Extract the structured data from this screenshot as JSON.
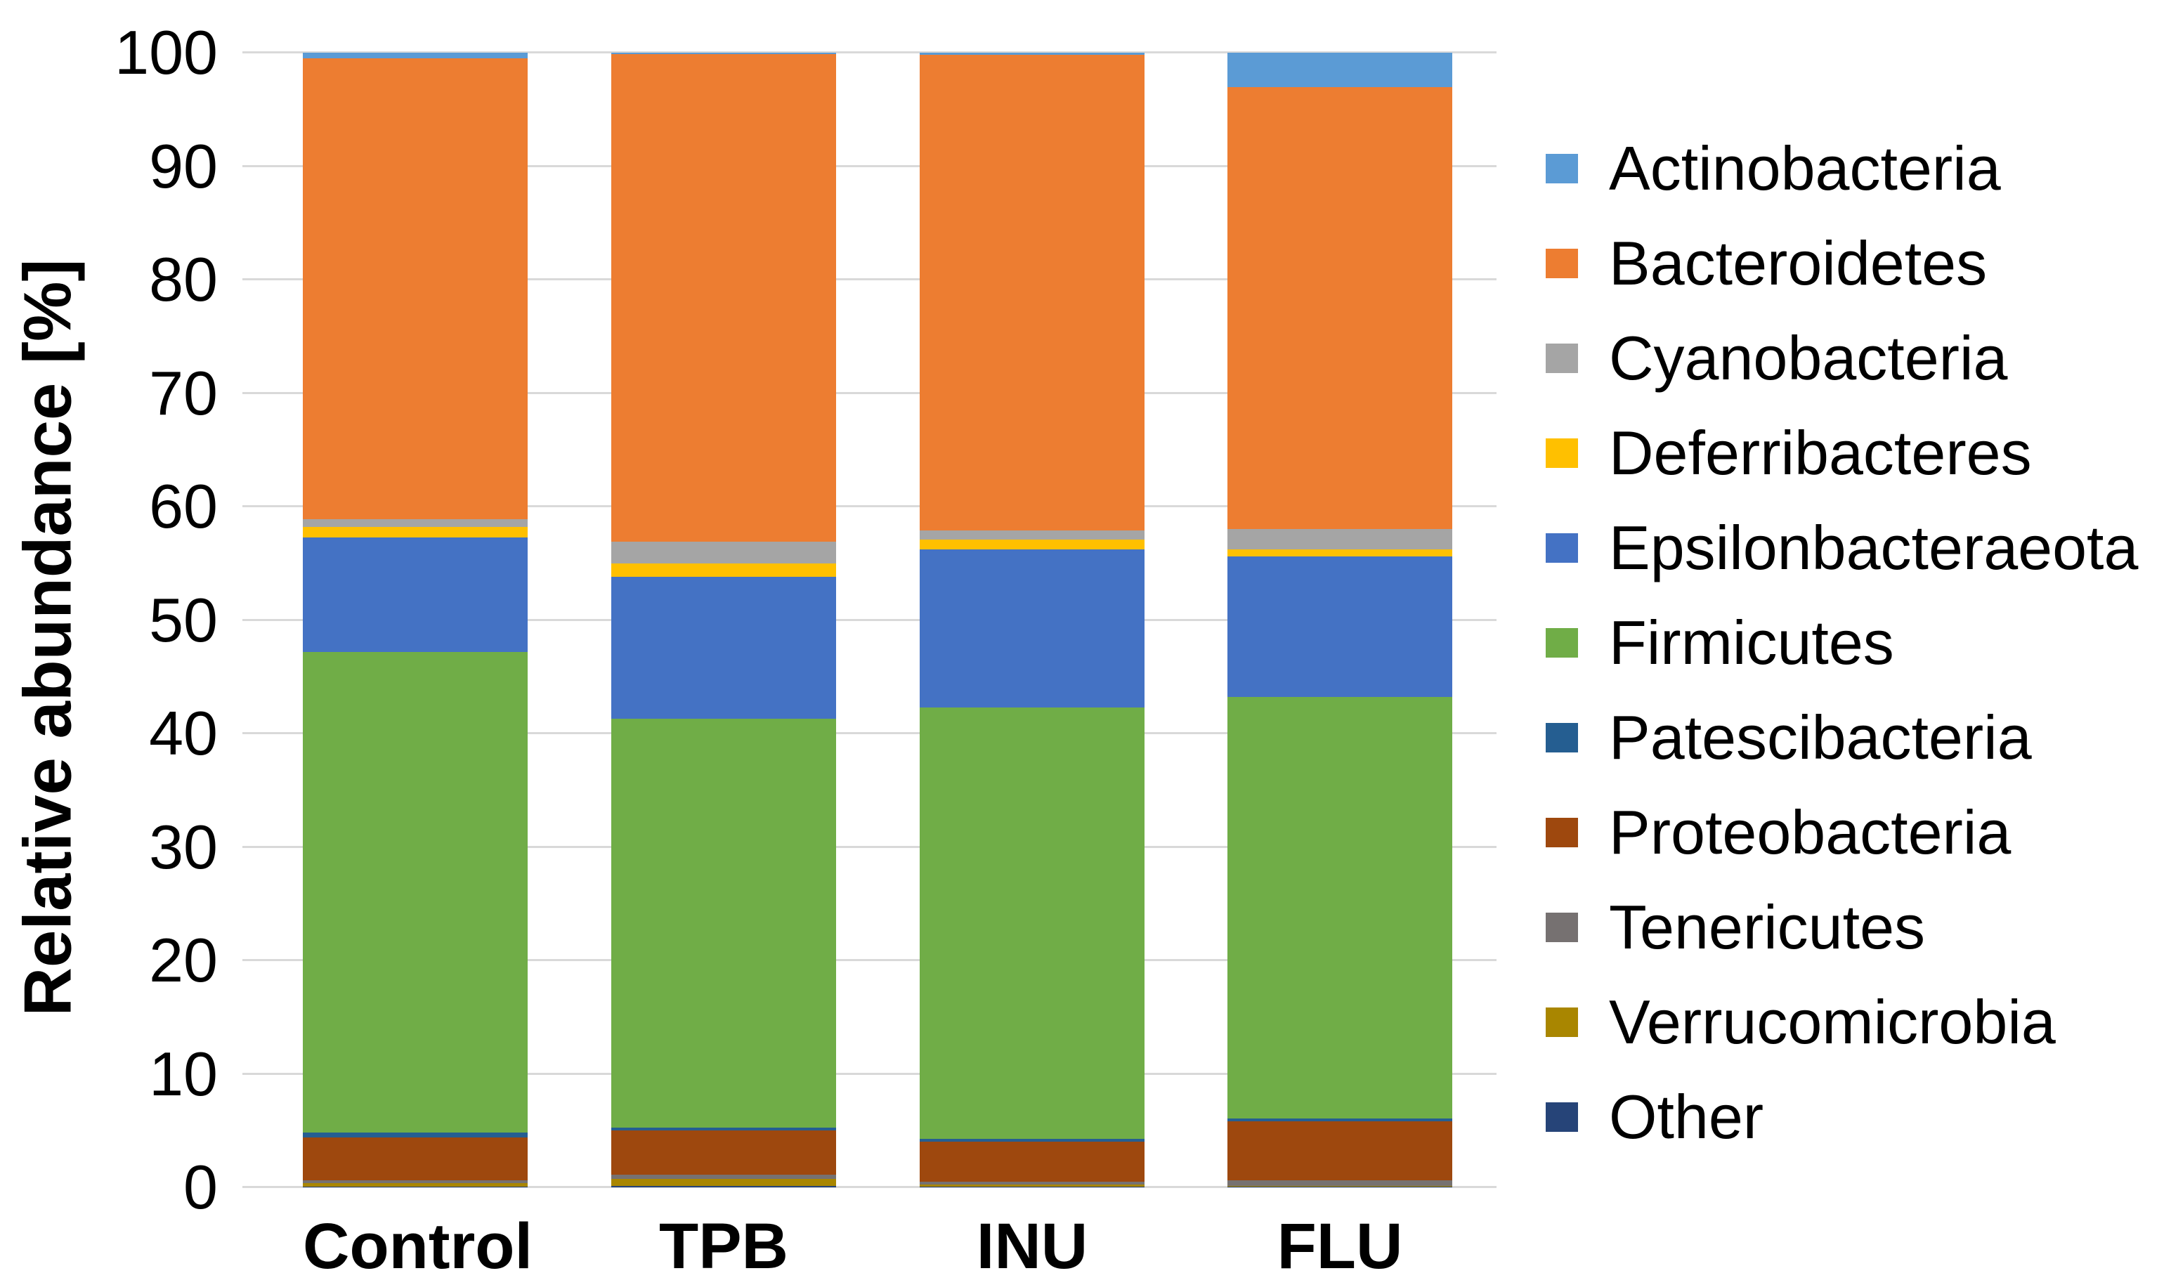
{
  "chart_data": {
    "type": "bar",
    "stacked": true,
    "title": "",
    "xlabel": "",
    "ylabel": "Relative abundance [%]",
    "ylim": [
      0,
      100
    ],
    "ytick_step": 10,
    "ytick_labels": [
      "0",
      "10",
      "20",
      "30",
      "40",
      "50",
      "60",
      "70",
      "80",
      "90",
      "100"
    ],
    "grid": true,
    "legend_position": "right",
    "categories": [
      "Control",
      "TPB",
      "INU",
      "FLU"
    ],
    "series": [
      {
        "name": "Actinobacteria",
        "color": "#5B9BD5",
        "values": [
          0.5,
          0.1,
          0.2,
          3.0
        ]
      },
      {
        "name": "Bacteroidetes",
        "color": "#ED7D31",
        "values": [
          40.6,
          43.0,
          41.9,
          39.0
        ]
      },
      {
        "name": "Cyanobacteria",
        "color": "#A5A5A5",
        "values": [
          0.7,
          1.9,
          0.8,
          1.8
        ]
      },
      {
        "name": "Deferribacteres",
        "color": "#FFC000",
        "values": [
          0.9,
          1.2,
          0.9,
          0.6
        ]
      },
      {
        "name": "Epsilonbacteraeota",
        "color": "#4472C4",
        "values": [
          10.1,
          12.5,
          13.9,
          12.4
        ]
      },
      {
        "name": "Firmicutes",
        "color": "#70AD47",
        "values": [
          42.35,
          36.05,
          38.0,
          37.1
        ]
      },
      {
        "name": "Patescibacteria",
        "color": "#255E91",
        "values": [
          0.45,
          0.25,
          0.3,
          0.3
        ]
      },
      {
        "name": "Proteobacteria",
        "color": "#9E480E",
        "values": [
          3.8,
          3.9,
          3.5,
          5.2
        ]
      },
      {
        "name": "Tenericutes",
        "color": "#767171",
        "values": [
          0.25,
          0.35,
          0.25,
          0.45
        ]
      },
      {
        "name": "Verrucomicrobia",
        "color": "#A98600",
        "values": [
          0.3,
          0.65,
          0.2,
          0.1
        ]
      },
      {
        "name": "Other",
        "color": "#264478",
        "values": [
          0.05,
          0.1,
          0.05,
          0.05
        ]
      }
    ],
    "stack_note": "bottom-to-top stacking is reverse of legend order (Other at bottom, Actinobacteria at top)"
  },
  "colors": {
    "background": "#FFFFFF",
    "gridline": "#D9D9D9",
    "text": "#000000"
  }
}
